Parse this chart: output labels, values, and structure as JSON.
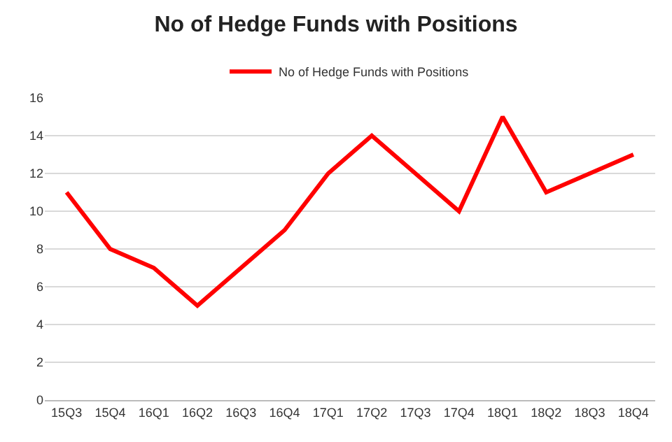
{
  "chart_data": {
    "type": "line",
    "title": "No of Hedge Funds with Positions",
    "categories": [
      "15Q3",
      "15Q4",
      "16Q1",
      "16Q2",
      "16Q3",
      "16Q4",
      "17Q1",
      "17Q2",
      "17Q3",
      "17Q4",
      "18Q1",
      "18Q2",
      "18Q3",
      "18Q4"
    ],
    "series": [
      {
        "name": "No of Hedge Funds with Positions",
        "color": "#ff0000",
        "values": [
          11,
          8,
          7,
          5,
          7,
          9,
          12,
          14,
          12,
          10,
          15,
          11,
          12,
          13
        ]
      }
    ],
    "ylim": [
      0,
      16
    ],
    "yticks": [
      0,
      2,
      4,
      6,
      8,
      10,
      12,
      14,
      16
    ],
    "grid": "y",
    "legend": "top",
    "marker": "none",
    "line_style": "solid"
  }
}
